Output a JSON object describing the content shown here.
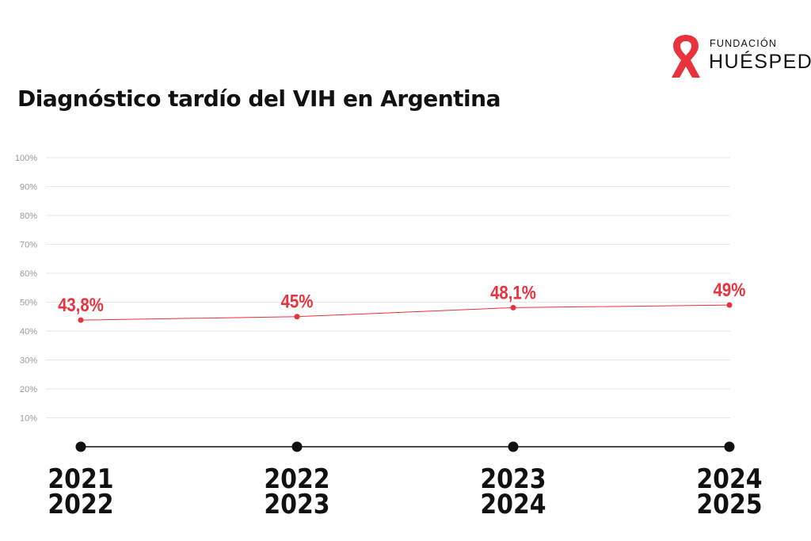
{
  "chart_data": {
    "type": "line",
    "title": "Diagnóstico tardío del VIH en Argentina",
    "categories": [
      [
        "2021",
        "2022"
      ],
      [
        "2022",
        "2023"
      ],
      [
        "2023",
        "2024"
      ],
      [
        "2024",
        "2025"
      ]
    ],
    "values": [
      43.8,
      45,
      48.1,
      49
    ],
    "data_labels": [
      "43,8%",
      "45%",
      "48,1%",
      "49%"
    ],
    "ylim": [
      0,
      100
    ],
    "yticks": [
      "10%",
      "20%",
      "30%",
      "40%",
      "50%",
      "60%",
      "70%",
      "80%",
      "90%",
      "100%"
    ],
    "grid": true,
    "colors": {
      "series": "#e8323c",
      "axis": "#111111",
      "grid": "#e6e6e6",
      "tick_text": "#9a9a9a"
    }
  },
  "logo": {
    "line1": "FUNDACIÓN",
    "line2": "HUÉSPED",
    "icon": "red-ribbon-icon",
    "color": "#e8323c"
  }
}
